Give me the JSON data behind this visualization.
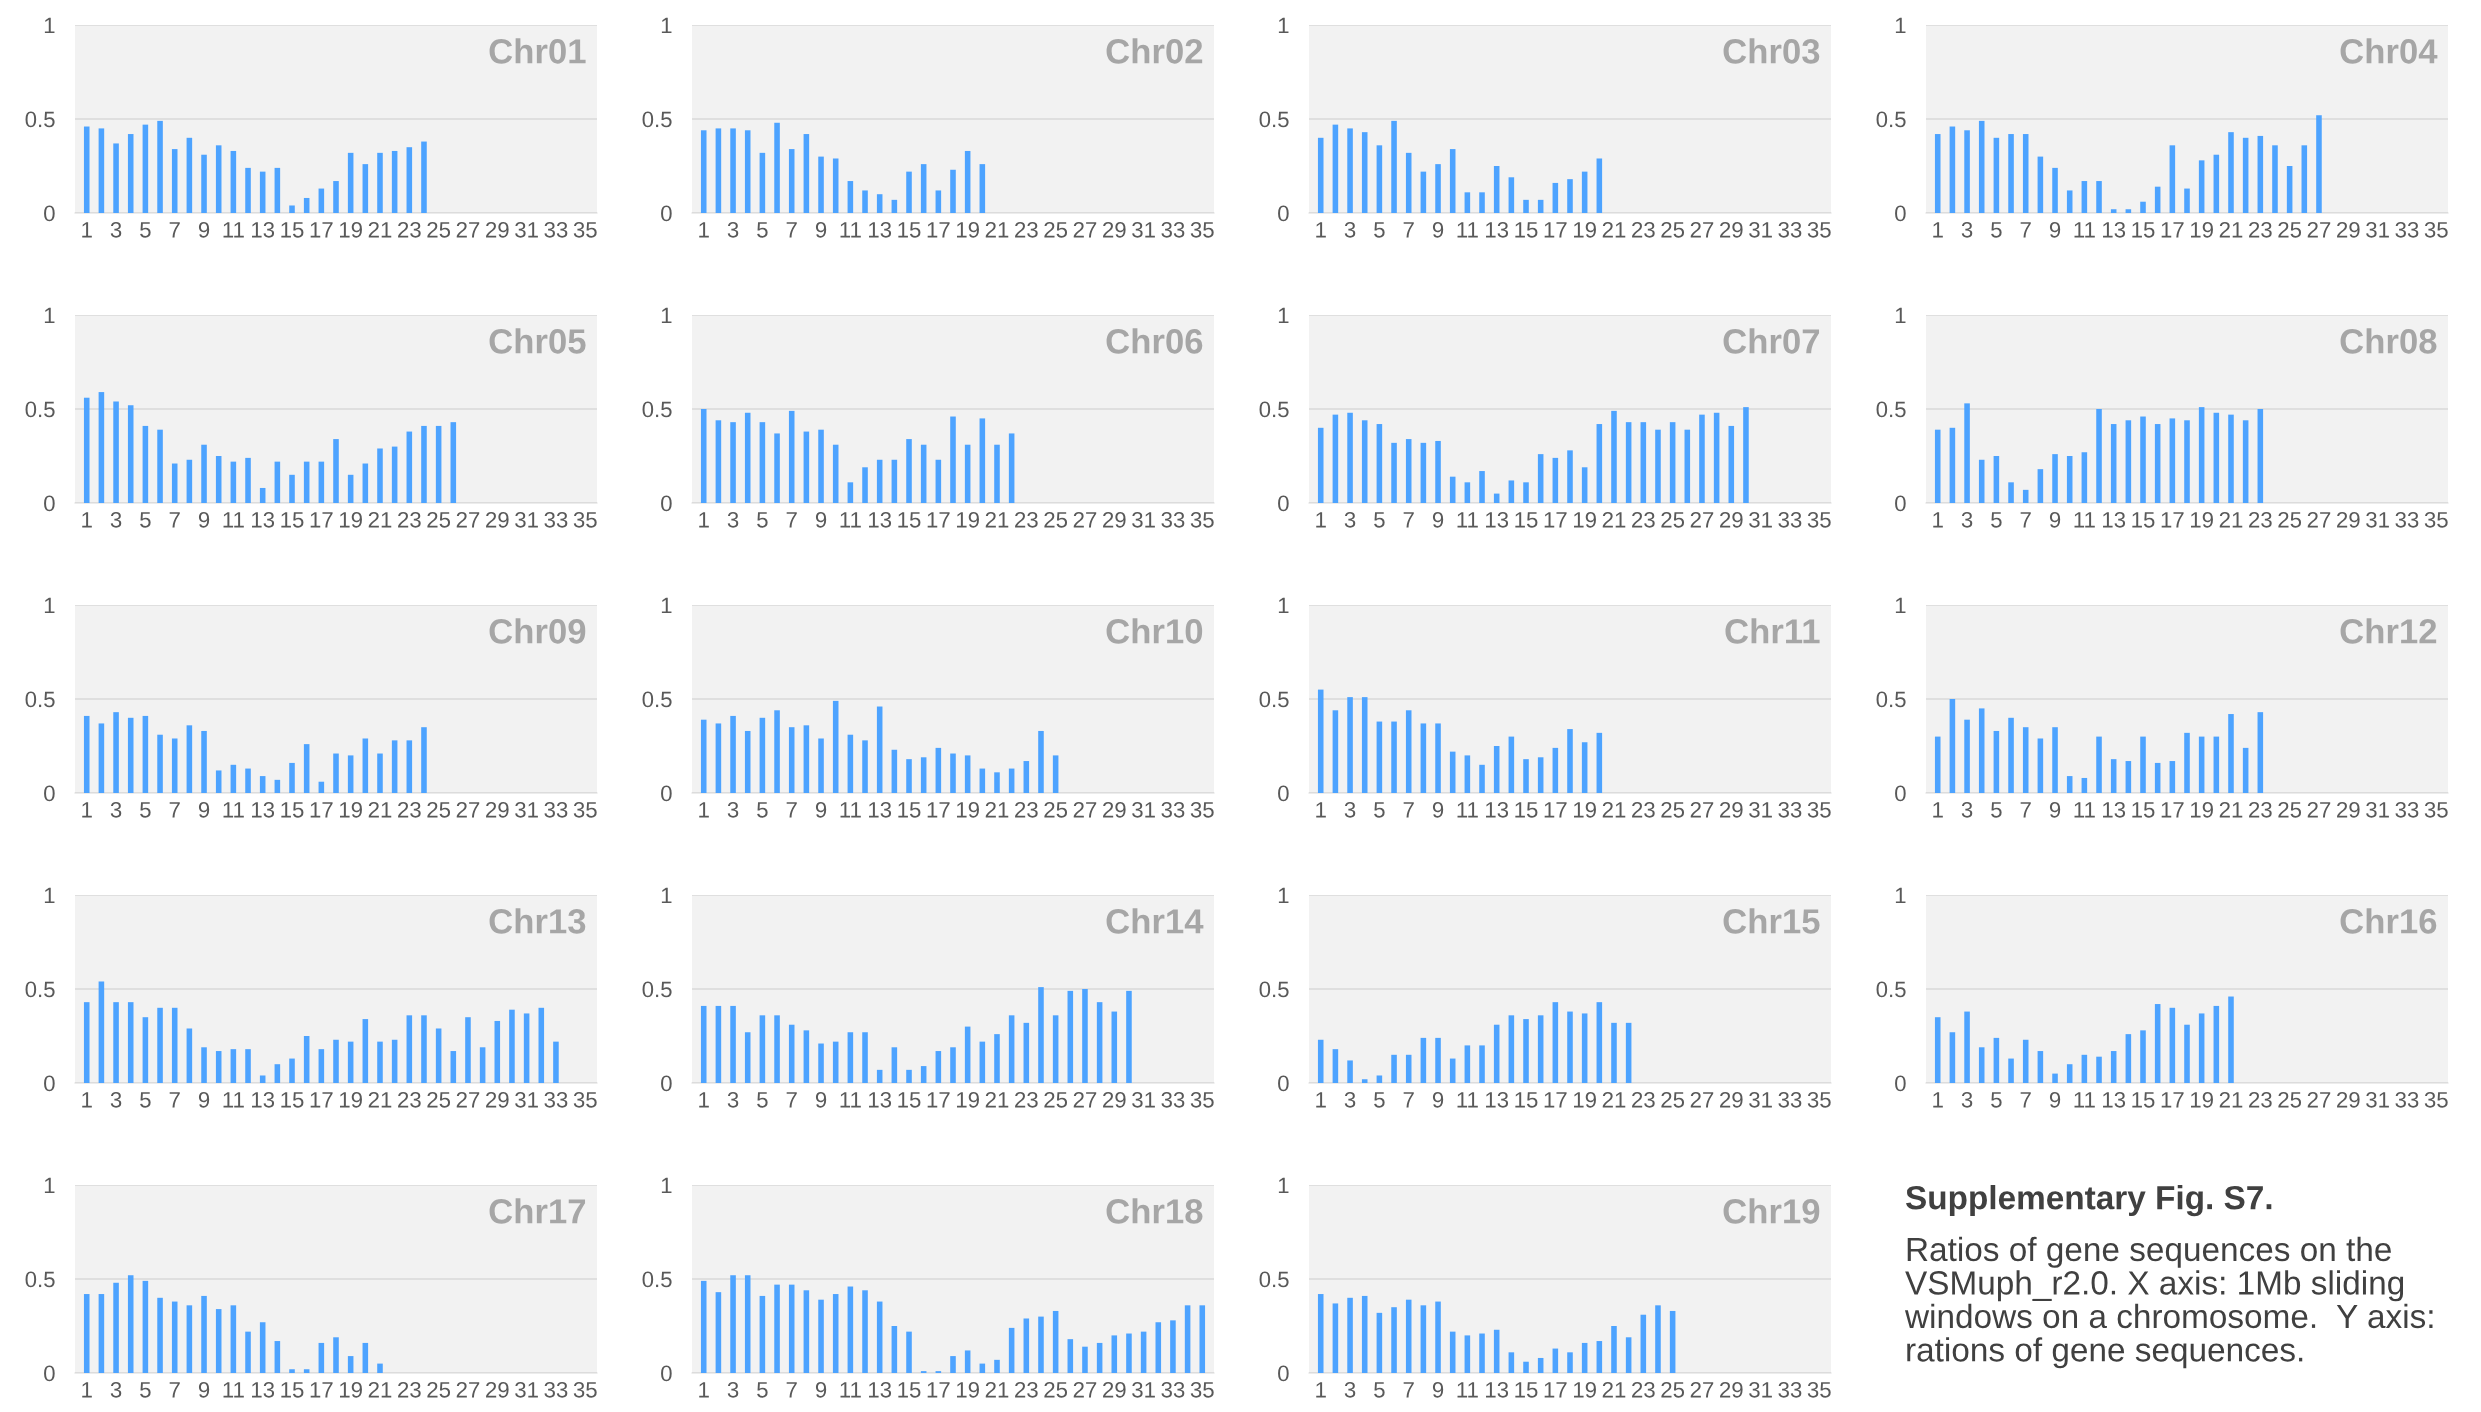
{
  "chart_data": [
    {
      "type": "bar",
      "title": "Chr01",
      "color": "#4da3ff",
      "ylim": [
        0,
        1
      ],
      "yticks": [
        0,
        0.5,
        1
      ],
      "grid": "y",
      "categories": [
        "1",
        null,
        "3",
        null,
        "5",
        null,
        "7",
        null,
        "9",
        null,
        "11",
        null,
        "13",
        null,
        "15",
        null,
        "17",
        null,
        "19",
        null,
        "21",
        null,
        "23",
        null,
        "25",
        null,
        "27",
        null,
        "29",
        null,
        "31",
        null,
        "33",
        null,
        "35"
      ],
      "values": [
        0.46,
        0.45,
        0.37,
        0.42,
        0.47,
        0.49,
        0.34,
        0.4,
        0.31,
        0.36,
        0.33,
        0.24,
        0.22,
        0.24,
        0.04,
        0.08,
        0.13,
        0.17,
        0.32,
        0.26,
        0.32,
        0.33,
        0.35,
        0.38,
        null,
        null,
        null,
        null,
        null,
        null,
        null,
        null,
        null,
        null,
        null
      ]
    },
    {
      "type": "bar",
      "title": "Chr02",
      "color": "#4da3ff",
      "ylim": [
        0,
        1
      ],
      "yticks": [
        0,
        0.5,
        1
      ],
      "grid": "y",
      "categories": [
        "1",
        null,
        "3",
        null,
        "5",
        null,
        "7",
        null,
        "9",
        null,
        "11",
        null,
        "13",
        null,
        "15",
        null,
        "17",
        null,
        "19",
        null,
        "21",
        null,
        "23",
        null,
        "25",
        null,
        "27",
        null,
        "29",
        null,
        "31",
        null,
        "33",
        null,
        "35"
      ],
      "values": [
        0.44,
        0.45,
        0.45,
        0.44,
        0.32,
        0.48,
        0.34,
        0.42,
        0.3,
        0.29,
        0.17,
        0.12,
        0.1,
        0.07,
        0.22,
        0.26,
        0.12,
        0.23,
        0.33,
        0.26,
        null,
        null,
        null,
        null,
        null,
        null,
        null,
        null,
        null,
        null,
        null,
        null,
        null,
        null,
        null
      ]
    },
    {
      "type": "bar",
      "title": "Chr03",
      "color": "#4da3ff",
      "ylim": [
        0,
        1
      ],
      "yticks": [
        0,
        0.5,
        1
      ],
      "grid": "y",
      "categories": [
        "1",
        null,
        "3",
        null,
        "5",
        null,
        "7",
        null,
        "9",
        null,
        "11",
        null,
        "13",
        null,
        "15",
        null,
        "17",
        null,
        "19",
        null,
        "21",
        null,
        "23",
        null,
        "25",
        null,
        "27",
        null,
        "29",
        null,
        "31",
        null,
        "33",
        null,
        "35"
      ],
      "values": [
        0.4,
        0.47,
        0.45,
        0.43,
        0.36,
        0.49,
        0.32,
        0.22,
        0.26,
        0.34,
        0.11,
        0.11,
        0.25,
        0.19,
        0.07,
        0.07,
        0.16,
        0.18,
        0.22,
        0.29,
        null,
        null,
        null,
        null,
        null,
        null,
        null,
        null,
        null,
        null,
        null,
        null,
        null,
        null,
        null
      ]
    },
    {
      "type": "bar",
      "title": "Chr04",
      "color": "#4da3ff",
      "ylim": [
        0,
        1
      ],
      "yticks": [
        0,
        0.5,
        1
      ],
      "grid": "y",
      "categories": [
        "1",
        null,
        "3",
        null,
        "5",
        null,
        "7",
        null,
        "9",
        null,
        "11",
        null,
        "13",
        null,
        "15",
        null,
        "17",
        null,
        "19",
        null,
        "21",
        null,
        "23",
        null,
        "25",
        null,
        "27",
        null,
        "29",
        null,
        "31",
        null,
        "33",
        null,
        "35"
      ],
      "values": [
        0.42,
        0.46,
        0.44,
        0.49,
        0.4,
        0.42,
        0.42,
        0.3,
        0.24,
        0.12,
        0.17,
        0.17,
        0.02,
        0.02,
        0.06,
        0.14,
        0.36,
        0.13,
        0.28,
        0.31,
        0.43,
        0.4,
        0.41,
        0.36,
        0.25,
        0.36,
        0.52,
        null,
        null,
        null,
        null,
        null,
        null,
        null,
        null
      ]
    },
    {
      "type": "bar",
      "title": "Chr05",
      "color": "#4da3ff",
      "ylim": [
        0,
        1
      ],
      "yticks": [
        0,
        0.5,
        1
      ],
      "grid": "y",
      "categories": [
        "1",
        null,
        "3",
        null,
        "5",
        null,
        "7",
        null,
        "9",
        null,
        "11",
        null,
        "13",
        null,
        "15",
        null,
        "17",
        null,
        "19",
        null,
        "21",
        null,
        "23",
        null,
        "25",
        null,
        "27",
        null,
        "29",
        null,
        "31",
        null,
        "33",
        null,
        "35"
      ],
      "values": [
        0.56,
        0.59,
        0.54,
        0.52,
        0.41,
        0.39,
        0.21,
        0.23,
        0.31,
        0.25,
        0.22,
        0.24,
        0.08,
        0.22,
        0.15,
        0.22,
        0.22,
        0.34,
        0.15,
        0.21,
        0.29,
        0.3,
        0.38,
        0.41,
        0.41,
        0.43,
        null,
        null,
        null,
        null,
        null,
        null,
        null,
        null,
        null
      ]
    },
    {
      "type": "bar",
      "title": "Chr06",
      "color": "#4da3ff",
      "ylim": [
        0,
        1
      ],
      "yticks": [
        0,
        0.5,
        1
      ],
      "grid": "y",
      "categories": [
        "1",
        null,
        "3",
        null,
        "5",
        null,
        "7",
        null,
        "9",
        null,
        "11",
        null,
        "13",
        null,
        "15",
        null,
        "17",
        null,
        "19",
        null,
        "21",
        null,
        "23",
        null,
        "25",
        null,
        "27",
        null,
        "29",
        null,
        "31",
        null,
        "33",
        null,
        "35"
      ],
      "values": [
        0.5,
        0.44,
        0.43,
        0.48,
        0.43,
        0.37,
        0.49,
        0.38,
        0.39,
        0.31,
        0.11,
        0.19,
        0.23,
        0.23,
        0.34,
        0.31,
        0.23,
        0.46,
        0.31,
        0.45,
        0.31,
        0.37,
        null,
        null,
        null,
        null,
        null,
        null,
        null,
        null,
        null,
        null,
        null,
        null,
        null
      ]
    },
    {
      "type": "bar",
      "title": "Chr07",
      "color": "#4da3ff",
      "ylim": [
        0,
        1
      ],
      "yticks": [
        0,
        0.5,
        1
      ],
      "grid": "y",
      "categories": [
        "1",
        null,
        "3",
        null,
        "5",
        null,
        "7",
        null,
        "9",
        null,
        "11",
        null,
        "13",
        null,
        "15",
        null,
        "17",
        null,
        "19",
        null,
        "21",
        null,
        "23",
        null,
        "25",
        null,
        "27",
        null,
        "29",
        null,
        "31",
        null,
        "33",
        null,
        "35"
      ],
      "values": [
        0.4,
        0.47,
        0.48,
        0.44,
        0.42,
        0.32,
        0.34,
        0.32,
        0.33,
        0.14,
        0.11,
        0.17,
        0.05,
        0.12,
        0.11,
        0.26,
        0.24,
        0.28,
        0.19,
        0.42,
        0.49,
        0.43,
        0.43,
        0.39,
        0.43,
        0.39,
        0.47,
        0.48,
        0.41,
        0.51,
        null,
        null,
        null,
        null,
        null
      ]
    },
    {
      "type": "bar",
      "title": "Chr08",
      "color": "#4da3ff",
      "ylim": [
        0,
        1
      ],
      "yticks": [
        0,
        0.5,
        1
      ],
      "grid": "y",
      "categories": [
        "1",
        null,
        "3",
        null,
        "5",
        null,
        "7",
        null,
        "9",
        null,
        "11",
        null,
        "13",
        null,
        "15",
        null,
        "17",
        null,
        "19",
        null,
        "21",
        null,
        "23",
        null,
        "25",
        null,
        "27",
        null,
        "29",
        null,
        "31",
        null,
        "33",
        null,
        "35"
      ],
      "values": [
        0.39,
        0.4,
        0.53,
        0.23,
        0.25,
        0.11,
        0.07,
        0.18,
        0.26,
        0.25,
        0.27,
        0.5,
        0.42,
        0.44,
        0.46,
        0.42,
        0.45,
        0.44,
        0.51,
        0.48,
        0.47,
        0.44,
        0.5,
        null,
        null,
        null,
        null,
        null,
        null,
        null,
        null,
        null,
        null,
        null,
        null
      ]
    },
    {
      "type": "bar",
      "title": "Chr09",
      "color": "#4da3ff",
      "ylim": [
        0,
        1
      ],
      "yticks": [
        0,
        0.5,
        1
      ],
      "grid": "y",
      "categories": [
        "1",
        null,
        "3",
        null,
        "5",
        null,
        "7",
        null,
        "9",
        null,
        "11",
        null,
        "13",
        null,
        "15",
        null,
        "17",
        null,
        "19",
        null,
        "21",
        null,
        "23",
        null,
        "25",
        null,
        "27",
        null,
        "29",
        null,
        "31",
        null,
        "33",
        null,
        "35"
      ],
      "values": [
        0.41,
        0.37,
        0.43,
        0.4,
        0.41,
        0.31,
        0.29,
        0.36,
        0.33,
        0.12,
        0.15,
        0.13,
        0.09,
        0.07,
        0.16,
        0.26,
        0.06,
        0.21,
        0.2,
        0.29,
        0.21,
        0.28,
        0.28,
        0.35,
        null,
        null,
        null,
        null,
        null,
        null,
        null,
        null,
        null,
        null,
        null
      ]
    },
    {
      "type": "bar",
      "title": "Chr10",
      "color": "#4da3ff",
      "ylim": [
        0,
        1
      ],
      "yticks": [
        0,
        0.5,
        1
      ],
      "grid": "y",
      "categories": [
        "1",
        null,
        "3",
        null,
        "5",
        null,
        "7",
        null,
        "9",
        null,
        "11",
        null,
        "13",
        null,
        "15",
        null,
        "17",
        null,
        "19",
        null,
        "21",
        null,
        "23",
        null,
        "25",
        null,
        "27",
        null,
        "29",
        null,
        "31",
        null,
        "33",
        null,
        "35"
      ],
      "values": [
        0.39,
        0.37,
        0.41,
        0.33,
        0.4,
        0.44,
        0.35,
        0.36,
        0.29,
        0.49,
        0.31,
        0.28,
        0.46,
        0.23,
        0.18,
        0.19,
        0.24,
        0.21,
        0.2,
        0.13,
        0.11,
        0.13,
        0.17,
        0.33,
        0.2,
        null,
        null,
        null,
        null,
        null,
        null,
        null,
        null,
        null,
        null
      ]
    },
    {
      "type": "bar",
      "title": "Chr11",
      "color": "#4da3ff",
      "ylim": [
        0,
        1
      ],
      "yticks": [
        0,
        0.5,
        1
      ],
      "grid": "y",
      "categories": [
        "1",
        null,
        "3",
        null,
        "5",
        null,
        "7",
        null,
        "9",
        null,
        "11",
        null,
        "13",
        null,
        "15",
        null,
        "17",
        null,
        "19",
        null,
        "21",
        null,
        "23",
        null,
        "25",
        null,
        "27",
        null,
        "29",
        null,
        "31",
        null,
        "33",
        null,
        "35"
      ],
      "values": [
        0.55,
        0.44,
        0.51,
        0.51,
        0.38,
        0.38,
        0.44,
        0.37,
        0.37,
        0.22,
        0.2,
        0.15,
        0.25,
        0.3,
        0.18,
        0.19,
        0.24,
        0.34,
        0.27,
        0.32,
        null,
        null,
        null,
        null,
        null,
        null,
        null,
        null,
        null,
        null,
        null,
        null,
        null,
        null,
        null
      ]
    },
    {
      "type": "bar",
      "title": "Chr12",
      "color": "#4da3ff",
      "ylim": [
        0,
        1
      ],
      "yticks": [
        0,
        0.5,
        1
      ],
      "grid": "y",
      "categories": [
        "1",
        null,
        "3",
        null,
        "5",
        null,
        "7",
        null,
        "9",
        null,
        "11",
        null,
        "13",
        null,
        "15",
        null,
        "17",
        null,
        "19",
        null,
        "21",
        null,
        "23",
        null,
        "25",
        null,
        "27",
        null,
        "29",
        null,
        "31",
        null,
        "33",
        null,
        "35"
      ],
      "values": [
        0.3,
        0.5,
        0.39,
        0.45,
        0.33,
        0.4,
        0.35,
        0.29,
        0.35,
        0.09,
        0.08,
        0.3,
        0.18,
        0.17,
        0.3,
        0.16,
        0.17,
        0.32,
        0.3,
        0.3,
        0.42,
        0.24,
        0.43,
        null,
        null,
        null,
        null,
        null,
        null,
        null,
        null,
        null,
        null,
        null,
        null
      ]
    },
    {
      "type": "bar",
      "title": "Chr13",
      "color": "#4da3ff",
      "ylim": [
        0,
        1
      ],
      "yticks": [
        0,
        0.5,
        1
      ],
      "grid": "y",
      "categories": [
        "1",
        null,
        "3",
        null,
        "5",
        null,
        "7",
        null,
        "9",
        null,
        "11",
        null,
        "13",
        null,
        "15",
        null,
        "17",
        null,
        "19",
        null,
        "21",
        null,
        "23",
        null,
        "25",
        null,
        "27",
        null,
        "29",
        null,
        "31",
        null,
        "33",
        null,
        "35"
      ],
      "values": [
        0.43,
        0.54,
        0.43,
        0.43,
        0.35,
        0.4,
        0.4,
        0.29,
        0.19,
        0.17,
        0.18,
        0.18,
        0.04,
        0.1,
        0.13,
        0.25,
        0.18,
        0.23,
        0.22,
        0.34,
        0.22,
        0.23,
        0.36,
        0.36,
        0.29,
        0.17,
        0.35,
        0.19,
        0.33,
        0.39,
        0.37,
        0.4,
        0.22,
        null,
        null
      ]
    },
    {
      "type": "bar",
      "title": "Chr14",
      "color": "#4da3ff",
      "ylim": [
        0,
        1
      ],
      "yticks": [
        0,
        0.5,
        1
      ],
      "grid": "y",
      "categories": [
        "1",
        null,
        "3",
        null,
        "5",
        null,
        "7",
        null,
        "9",
        null,
        "11",
        null,
        "13",
        null,
        "15",
        null,
        "17",
        null,
        "19",
        null,
        "21",
        null,
        "23",
        null,
        "25",
        null,
        "27",
        null,
        "29",
        null,
        "31",
        null,
        "33",
        null,
        "35"
      ],
      "values": [
        0.41,
        0.41,
        0.41,
        0.27,
        0.36,
        0.36,
        0.31,
        0.28,
        0.21,
        0.22,
        0.27,
        0.27,
        0.07,
        0.19,
        0.07,
        0.09,
        0.17,
        0.19,
        0.3,
        0.22,
        0.26,
        0.36,
        0.32,
        0.51,
        0.36,
        0.49,
        0.5,
        0.43,
        0.38,
        0.49,
        null,
        null,
        null,
        null,
        null
      ]
    },
    {
      "type": "bar",
      "title": "Chr15",
      "color": "#4da3ff",
      "ylim": [
        0,
        1
      ],
      "yticks": [
        0,
        0.5,
        1
      ],
      "grid": "y",
      "categories": [
        "1",
        null,
        "3",
        null,
        "5",
        null,
        "7",
        null,
        "9",
        null,
        "11",
        null,
        "13",
        null,
        "15",
        null,
        "17",
        null,
        "19",
        null,
        "21",
        null,
        "23",
        null,
        "25",
        null,
        "27",
        null,
        "29",
        null,
        "31",
        null,
        "33",
        null,
        "35"
      ],
      "values": [
        0.23,
        0.18,
        0.12,
        0.02,
        0.04,
        0.15,
        0.15,
        0.24,
        0.24,
        0.13,
        0.2,
        0.2,
        0.31,
        0.36,
        0.34,
        0.36,
        0.43,
        0.38,
        0.37,
        0.43,
        0.32,
        0.32,
        null,
        null,
        null,
        null,
        null,
        null,
        null,
        null,
        null,
        null,
        null,
        null,
        null
      ]
    },
    {
      "type": "bar",
      "title": "Chr16",
      "color": "#4da3ff",
      "ylim": [
        0,
        1
      ],
      "yticks": [
        0,
        0.5,
        1
      ],
      "grid": "y",
      "categories": [
        "1",
        null,
        "3",
        null,
        "5",
        null,
        "7",
        null,
        "9",
        null,
        "11",
        null,
        "13",
        null,
        "15",
        null,
        "17",
        null,
        "19",
        null,
        "21",
        null,
        "23",
        null,
        "25",
        null,
        "27",
        null,
        "29",
        null,
        "31",
        null,
        "33",
        null,
        "35"
      ],
      "values": [
        0.35,
        0.27,
        0.38,
        0.19,
        0.24,
        0.13,
        0.23,
        0.17,
        0.05,
        0.1,
        0.15,
        0.14,
        0.17,
        0.26,
        0.28,
        0.42,
        0.4,
        0.31,
        0.37,
        0.41,
        0.46,
        null,
        null,
        null,
        null,
        null,
        null,
        null,
        null,
        null,
        null,
        null,
        null,
        null,
        null
      ]
    },
    {
      "type": "bar",
      "title": "Chr17",
      "color": "#4da3ff",
      "ylim": [
        0,
        1
      ],
      "yticks": [
        0,
        0.5,
        1
      ],
      "grid": "y",
      "categories": [
        "1",
        null,
        "3",
        null,
        "5",
        null,
        "7",
        null,
        "9",
        null,
        "11",
        null,
        "13",
        null,
        "15",
        null,
        "17",
        null,
        "19",
        null,
        "21",
        null,
        "23",
        null,
        "25",
        null,
        "27",
        null,
        "29",
        null,
        "31",
        null,
        "33",
        null,
        "35"
      ],
      "values": [
        0.42,
        0.42,
        0.48,
        0.52,
        0.49,
        0.4,
        0.38,
        0.36,
        0.41,
        0.34,
        0.36,
        0.22,
        0.27,
        0.17,
        0.02,
        0.02,
        0.16,
        0.19,
        0.09,
        0.16,
        0.05,
        null,
        null,
        null,
        null,
        null,
        null,
        null,
        null,
        null,
        null,
        null,
        null,
        null,
        null
      ]
    },
    {
      "type": "bar",
      "title": "Chr18",
      "color": "#4da3ff",
      "ylim": [
        0,
        1
      ],
      "yticks": [
        0,
        0.5,
        1
      ],
      "grid": "y",
      "categories": [
        "1",
        null,
        "3",
        null,
        "5",
        null,
        "7",
        null,
        "9",
        null,
        "11",
        null,
        "13",
        null,
        "15",
        null,
        "17",
        null,
        "19",
        null,
        "21",
        null,
        "23",
        null,
        "25",
        null,
        "27",
        null,
        "29",
        null,
        "31",
        null,
        "33",
        null,
        "35"
      ],
      "values": [
        0.49,
        0.43,
        0.52,
        0.52,
        0.41,
        0.47,
        0.47,
        0.44,
        0.39,
        0.42,
        0.46,
        0.44,
        0.38,
        0.25,
        0.22,
        0.01,
        0.01,
        0.09,
        0.12,
        0.05,
        0.07,
        0.24,
        0.29,
        0.3,
        0.33,
        0.18,
        0.14,
        0.16,
        0.2,
        0.21,
        0.22,
        0.27,
        0.28,
        0.36,
        0.36
      ]
    },
    {
      "type": "bar",
      "title": "Chr19",
      "color": "#4da3ff",
      "ylim": [
        0,
        1
      ],
      "yticks": [
        0,
        0.5,
        1
      ],
      "grid": "y",
      "categories": [
        "1",
        null,
        "3",
        null,
        "5",
        null,
        "7",
        null,
        "9",
        null,
        "11",
        null,
        "13",
        null,
        "15",
        null,
        "17",
        null,
        "19",
        null,
        "21",
        null,
        "23",
        null,
        "25",
        null,
        "27",
        null,
        "29",
        null,
        "31",
        null,
        "33",
        null,
        "35"
      ],
      "values": [
        0.42,
        0.37,
        0.4,
        0.41,
        0.32,
        0.35,
        0.39,
        0.36,
        0.38,
        0.22,
        0.2,
        0.21,
        0.23,
        0.11,
        0.06,
        0.08,
        0.13,
        0.11,
        0.16,
        0.17,
        0.25,
        0.19,
        0.31,
        0.36,
        0.33,
        null,
        null,
        null,
        null,
        null,
        null,
        null,
        null,
        null,
        null
      ]
    },
    {
      "type": "other",
      "annotations": [
        "Supplementary Fig. S7.",
        "Ratios of gene sequences on the VSMuph_r2.0. X axis: 1Mb sliding windows on a chromosome.  Y axis: rations of gene sequences."
      ]
    }
  ]
}
